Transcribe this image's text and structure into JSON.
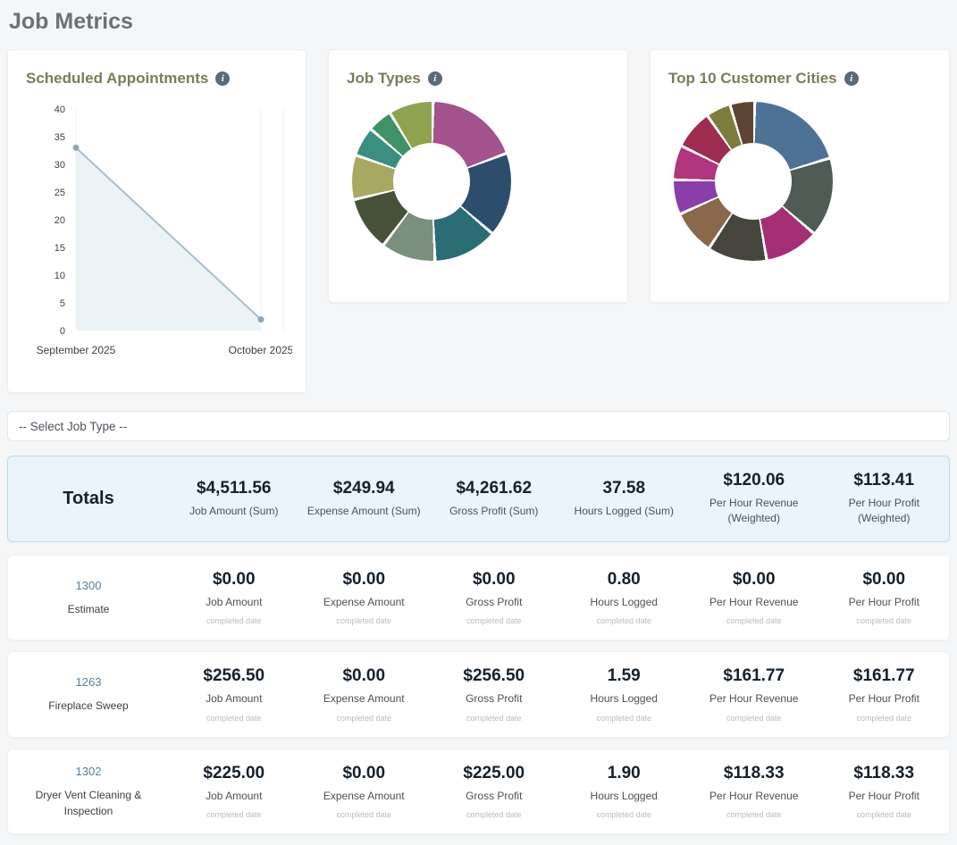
{
  "page": {
    "title": "Job Metrics"
  },
  "cards": {
    "appointments": {
      "title": "Scheduled Appointments",
      "info_icon": "i"
    },
    "job_types": {
      "title": "Job Types",
      "info_icon": "i"
    },
    "cities": {
      "title": "Top 10 Customer Cities",
      "info_icon": "i"
    }
  },
  "filter": {
    "selected": "-- Select Job Type --"
  },
  "table": {
    "totals": {
      "label": "Totals",
      "metrics": [
        {
          "value": "$4,511.56",
          "label": "Job Amount (Sum)"
        },
        {
          "value": "$249.94",
          "label": "Expense Amount (Sum)"
        },
        {
          "value": "$4,261.62",
          "label": "Gross Profit (Sum)"
        },
        {
          "value": "37.58",
          "label": "Hours Logged (Sum)"
        },
        {
          "value": "$120.06",
          "label": "Per Hour Revenue (Weighted)"
        },
        {
          "value": "$113.41",
          "label": "Per Hour Profit (Weighted)"
        }
      ]
    },
    "rows": [
      {
        "job_number": "1300",
        "job_name": "Estimate",
        "metrics": [
          {
            "value": "$0.00",
            "label": "Job Amount",
            "sub": "completed date"
          },
          {
            "value": "$0.00",
            "label": "Expense Amount",
            "sub": "completed date"
          },
          {
            "value": "$0.00",
            "label": "Gross Profit",
            "sub": "completed date"
          },
          {
            "value": "0.80",
            "label": "Hours Logged",
            "sub": "completed date"
          },
          {
            "value": "$0.00",
            "label": "Per Hour Revenue",
            "sub": "completed date"
          },
          {
            "value": "$0.00",
            "label": "Per Hour Profit",
            "sub": "completed date"
          }
        ]
      },
      {
        "job_number": "1263",
        "job_name": "Fireplace Sweep",
        "metrics": [
          {
            "value": "$256.50",
            "label": "Job Amount",
            "sub": "completed date"
          },
          {
            "value": "$0.00",
            "label": "Expense Amount",
            "sub": "completed date"
          },
          {
            "value": "$256.50",
            "label": "Gross Profit",
            "sub": "completed date"
          },
          {
            "value": "1.59",
            "label": "Hours Logged",
            "sub": "completed date"
          },
          {
            "value": "$161.77",
            "label": "Per Hour Revenue",
            "sub": "completed date"
          },
          {
            "value": "$161.77",
            "label": "Per Hour Profit",
            "sub": "completed date"
          }
        ]
      },
      {
        "job_number": "1302",
        "job_name": "Dryer Vent Cleaning & Inspection",
        "metrics": [
          {
            "value": "$225.00",
            "label": "Job Amount",
            "sub": "completed date"
          },
          {
            "value": "$0.00",
            "label": "Expense Amount",
            "sub": "completed date"
          },
          {
            "value": "$225.00",
            "label": "Gross Profit",
            "sub": "completed date"
          },
          {
            "value": "1.90",
            "label": "Hours Logged",
            "sub": "completed date"
          },
          {
            "value": "$118.33",
            "label": "Per Hour Revenue",
            "sub": "completed date"
          },
          {
            "value": "$118.33",
            "label": "Per Hour Profit",
            "sub": "completed date"
          }
        ]
      }
    ]
  },
  "chart_data": [
    {
      "type": "area",
      "title": "Scheduled Appointments",
      "x": [
        "September 2025",
        "October 2025"
      ],
      "values": [
        33,
        2
      ],
      "ylim": [
        0,
        40
      ],
      "ytick_step": 5,
      "grid": "light-vertical",
      "line_color": "#a9bfc9",
      "fill_color": "#e9f1f4",
      "point_color": "#8fa6b2"
    },
    {
      "type": "pie",
      "title": "Job Types",
      "donut": true,
      "legend": "none",
      "segments": [
        {
          "color": "#a4538e",
          "value": 19
        },
        {
          "color": "#2d4d6d",
          "value": 17
        },
        {
          "color": "#2b6d75",
          "value": 13
        },
        {
          "color": "#7b907c",
          "value": 11
        },
        {
          "color": "#48513a",
          "value": 11
        },
        {
          "color": "#a8a862",
          "value": 9
        },
        {
          "color": "#3a8f80",
          "value": 6
        },
        {
          "color": "#3f9168",
          "value": 5
        },
        {
          "color": "#8ea24f",
          "value": 9
        }
      ]
    },
    {
      "type": "pie",
      "title": "Top 10 Customer Cities",
      "donut": true,
      "legend": "none",
      "segments": [
        {
          "color": "#4d7296",
          "value": 20
        },
        {
          "color": "#4f5b54",
          "value": 16
        },
        {
          "color": "#a52f75",
          "value": 11
        },
        {
          "color": "#46463e",
          "value": 12
        },
        {
          "color": "#8a684c",
          "value": 9
        },
        {
          "color": "#8b3ea9",
          "value": 7
        },
        {
          "color": "#b1357f",
          "value": 7
        },
        {
          "color": "#9e2c50",
          "value": 8
        },
        {
          "color": "#7e7c3c",
          "value": 5
        },
        {
          "color": "#5f4433",
          "value": 5
        }
      ]
    }
  ]
}
